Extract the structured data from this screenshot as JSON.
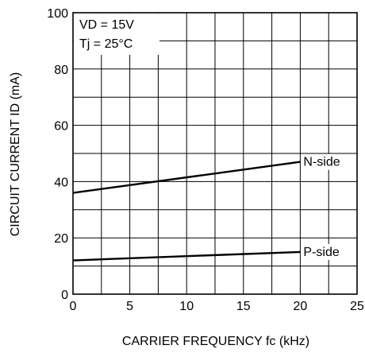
{
  "chart_data": {
    "type": "line",
    "x_range": [
      0,
      25
    ],
    "y_range": [
      0,
      100
    ],
    "x_ticks": [
      0,
      5,
      10,
      15,
      20,
      25
    ],
    "y_ticks": [
      0,
      20,
      40,
      60,
      80,
      100
    ],
    "x_tick_labels": [
      "0",
      "5",
      "10",
      "15",
      "20",
      "25"
    ],
    "y_tick_labels": [
      "0",
      "20",
      "40",
      "60",
      "80",
      "100"
    ],
    "grid": true,
    "xlabel": "CARRIER FREQUENCY  fc (kHz)",
    "ylabel": "CIRCUIT CURRENT  ID (mA)",
    "conditions": {
      "line1": "VD = 15V",
      "line2": "Tj = 25°C"
    },
    "series": [
      {
        "name": "N-side",
        "x": [
          0,
          20
        ],
        "y": [
          36,
          47
        ]
      },
      {
        "name": "P-side",
        "x": [
          0,
          20
        ],
        "y": [
          12,
          15
        ]
      }
    ],
    "colors": {
      "line": "#000000",
      "grid": "#000000",
      "background": "#ffffff"
    }
  }
}
